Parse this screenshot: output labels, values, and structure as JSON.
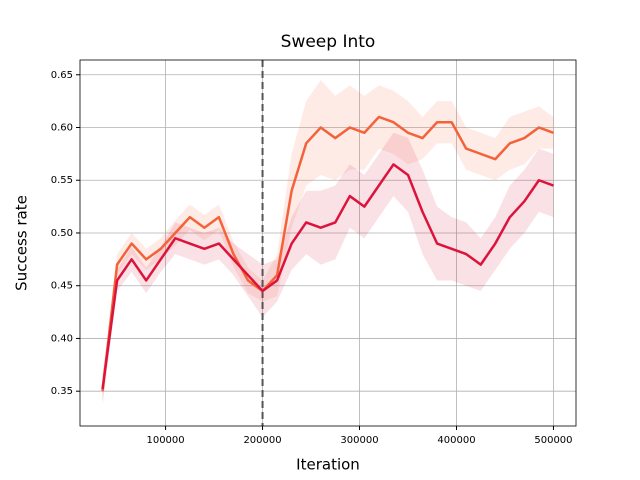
{
  "chart_data": {
    "type": "line",
    "title": "Sweep Into",
    "x_label": "Iteration",
    "y_label": "Success rate",
    "x": [
      35000,
      50000,
      65000,
      80000,
      95000,
      110000,
      125000,
      140000,
      155000,
      170000,
      185000,
      200000,
      215000,
      230000,
      245000,
      260000,
      275000,
      290000,
      305000,
      320000,
      335000,
      350000,
      365000,
      380000,
      395000,
      410000,
      425000,
      440000,
      455000,
      470000,
      485000,
      500000
    ],
    "series": [
      {
        "color": "#f4623a",
        "values": [
          0.35,
          0.47,
          0.49,
          0.475,
          0.485,
          0.5,
          0.515,
          0.505,
          0.515,
          0.48,
          0.455,
          0.445,
          0.46,
          0.54,
          0.585,
          0.6,
          0.59,
          0.6,
          0.595,
          0.61,
          0.605,
          0.595,
          0.59,
          0.605,
          0.605,
          0.58,
          0.575,
          0.57,
          0.585,
          0.59,
          0.6,
          0.595
        ],
        "errors": [
          0.01,
          0.01,
          0.01,
          0.01,
          0.01,
          0.012,
          0.012,
          0.012,
          0.012,
          0.012,
          0.012,
          0.01,
          0.02,
          0.035,
          0.04,
          0.045,
          0.04,
          0.04,
          0.035,
          0.03,
          0.03,
          0.03,
          0.02,
          0.02,
          0.02,
          0.02,
          0.02,
          0.02,
          0.025,
          0.025,
          0.02,
          0.015
        ]
      },
      {
        "color": "#dc143c",
        "values": [
          0.352,
          0.455,
          0.475,
          0.455,
          0.475,
          0.495,
          0.49,
          0.485,
          0.49,
          0.475,
          0.46,
          0.445,
          0.455,
          0.49,
          0.51,
          0.505,
          0.51,
          0.535,
          0.525,
          0.545,
          0.565,
          0.555,
          0.52,
          0.49,
          0.485,
          0.48,
          0.47,
          0.49,
          0.515,
          0.53,
          0.55,
          0.545
        ],
        "errors": [
          0.015,
          0.01,
          0.012,
          0.012,
          0.012,
          0.015,
          0.015,
          0.015,
          0.015,
          0.015,
          0.02,
          0.025,
          0.02,
          0.025,
          0.03,
          0.035,
          0.035,
          0.03,
          0.03,
          0.03,
          0.03,
          0.035,
          0.04,
          0.035,
          0.03,
          0.03,
          0.025,
          0.025,
          0.03,
          0.03,
          0.03,
          0.03
        ]
      }
    ],
    "xlim": [
      11750,
      523250
    ],
    "xticks": [
      100000,
      200000,
      300000,
      400000,
      500000
    ],
    "ylim": [
      0.317,
      0.664
    ],
    "yticks": [
      0.35,
      {
        "value": 0.4,
        "label": "0.40"
      },
      0.45,
      {
        "value": 0.5,
        "label": "0.50"
      },
      0.55,
      {
        "value": 0.6,
        "label": "0.60"
      },
      0.65
    ],
    "grid": true,
    "vline": 200000
  }
}
